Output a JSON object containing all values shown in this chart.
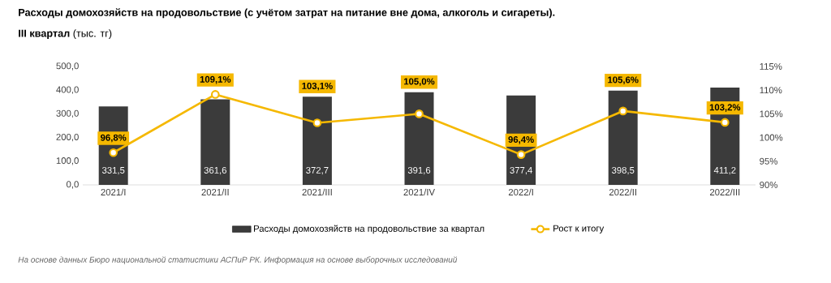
{
  "chart_data": {
    "type": "bar",
    "title": "Расходы домохозяйств на продовольствие (с учётом затрат на питание вне дома, алкоголь и сигареты).",
    "subtitle": "**III квартал** (тыс. тг)",
    "categories": [
      "2021/I",
      "2021/II",
      "2021/III",
      "2021/IV",
      "2022/I",
      "2022/II",
      "2022/III"
    ],
    "series": [
      {
        "name": "Расходы домохозяйств на продовольствие за квартал",
        "color": "#3b3b3b",
        "values": [
          331.5,
          361.6,
          372.7,
          391.6,
          377.4,
          398.5,
          411.2
        ],
        "value_labels": [
          "331,5",
          "361,6",
          "372,7",
          "391,6",
          "377,4",
          "398,5",
          "411,2"
        ]
      },
      {
        "name": "Рост к итогу",
        "type": "line",
        "axis": "y2",
        "color": "#f5b800",
        "values": [
          96.8,
          109.1,
          103.1,
          105.0,
          96.4,
          105.6,
          103.2
        ],
        "value_labels": [
          "96,8%",
          "109,1%",
          "103,1%",
          "105,0%",
          "96,4%",
          "105,6%",
          "103,2%"
        ]
      }
    ],
    "ylim": [
      0,
      500
    ],
    "yticks": [
      {
        "value": 0,
        "label": "0,0"
      },
      {
        "value": 100,
        "label": "100,0"
      },
      {
        "value": 200,
        "label": "200,0"
      },
      {
        "value": 300,
        "label": "300,0"
      },
      {
        "value": 400,
        "label": "400,0"
      },
      {
        "value": 500,
        "label": "500,0"
      }
    ],
    "y2lim": [
      90,
      115
    ],
    "y2ticks": [
      {
        "value": 90,
        "label": "90%"
      },
      {
        "value": 95,
        "label": "95%"
      },
      {
        "value": 100,
        "label": "100%"
      },
      {
        "value": 105,
        "label": "105%"
      },
      {
        "value": 110,
        "label": "110%"
      },
      {
        "value": 115,
        "label": "115%"
      }
    ],
    "legend": "bottom",
    "marker": "circle",
    "annotations": [
      "На основе данных Бюро национальной статистики АСПиР РК. Информация на основе выборочных исследований"
    ]
  }
}
